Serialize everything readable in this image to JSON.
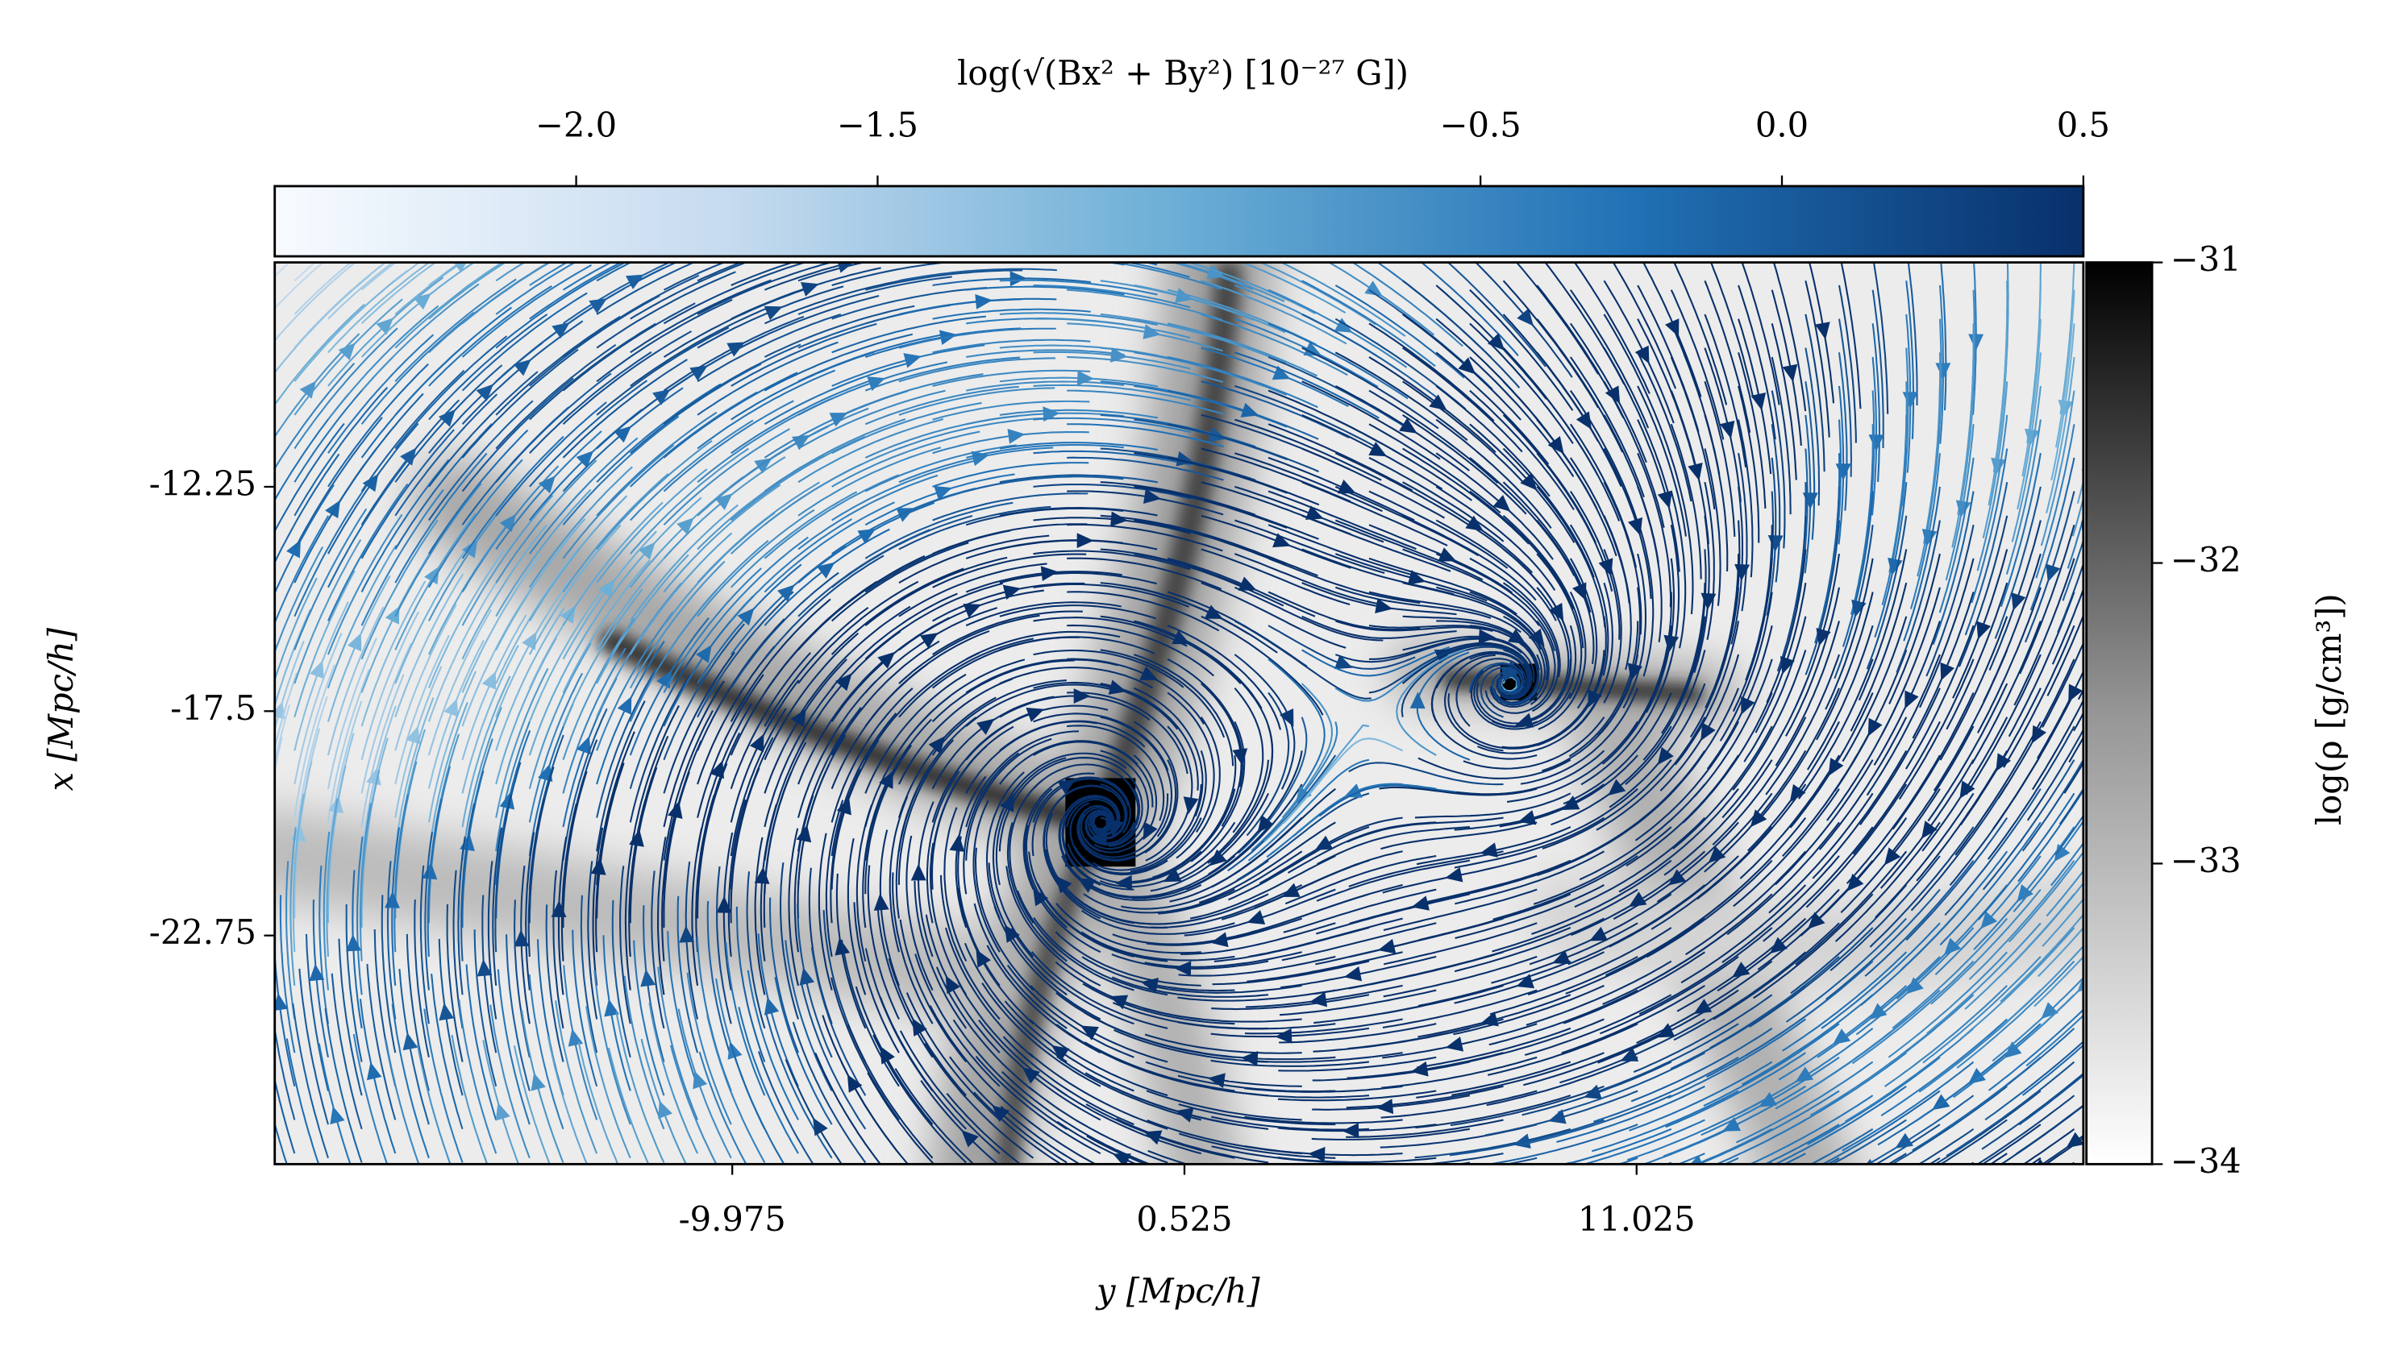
{
  "chart_data": {
    "type": "streamplot",
    "xlabel": "y [Mpc/h]",
    "ylabel": "x [Mpc/h]",
    "xlim": [
      -20.6,
      21.4
    ],
    "xticks": [
      -9.975,
      0.525,
      11.025
    ],
    "ylim": [
      -28.1,
      -7.0
    ],
    "yticks": [
      -12.25,
      -17.5,
      -22.75
    ],
    "colorbar_top": {
      "label": "log(√(Bx² + By²) [10⁻²⁷ G])",
      "colormap": "Blues",
      "lim": [
        -2.5,
        0.5
      ],
      "ticks": [
        {
          "value": -2,
          "label": "−2.0"
        },
        {
          "value": -1.5,
          "label": "−1.5"
        },
        {
          "value": -0.5,
          "label": "−0.5"
        },
        {
          "value": 0,
          "label": "0.0"
        },
        0.5
      ]
    },
    "colorbar_right": {
      "label": "log(ρ [g/cm³])",
      "colormap": "Greys",
      "lim": [
        -34,
        -31
      ],
      "ticks": [
        {
          "value": -31,
          "label": "−31"
        },
        {
          "value": -32,
          "label": "−32"
        },
        {
          "value": -33,
          "label": "−33"
        },
        {
          "value": -34,
          "label": "−34"
        }
      ]
    }
  }
}
